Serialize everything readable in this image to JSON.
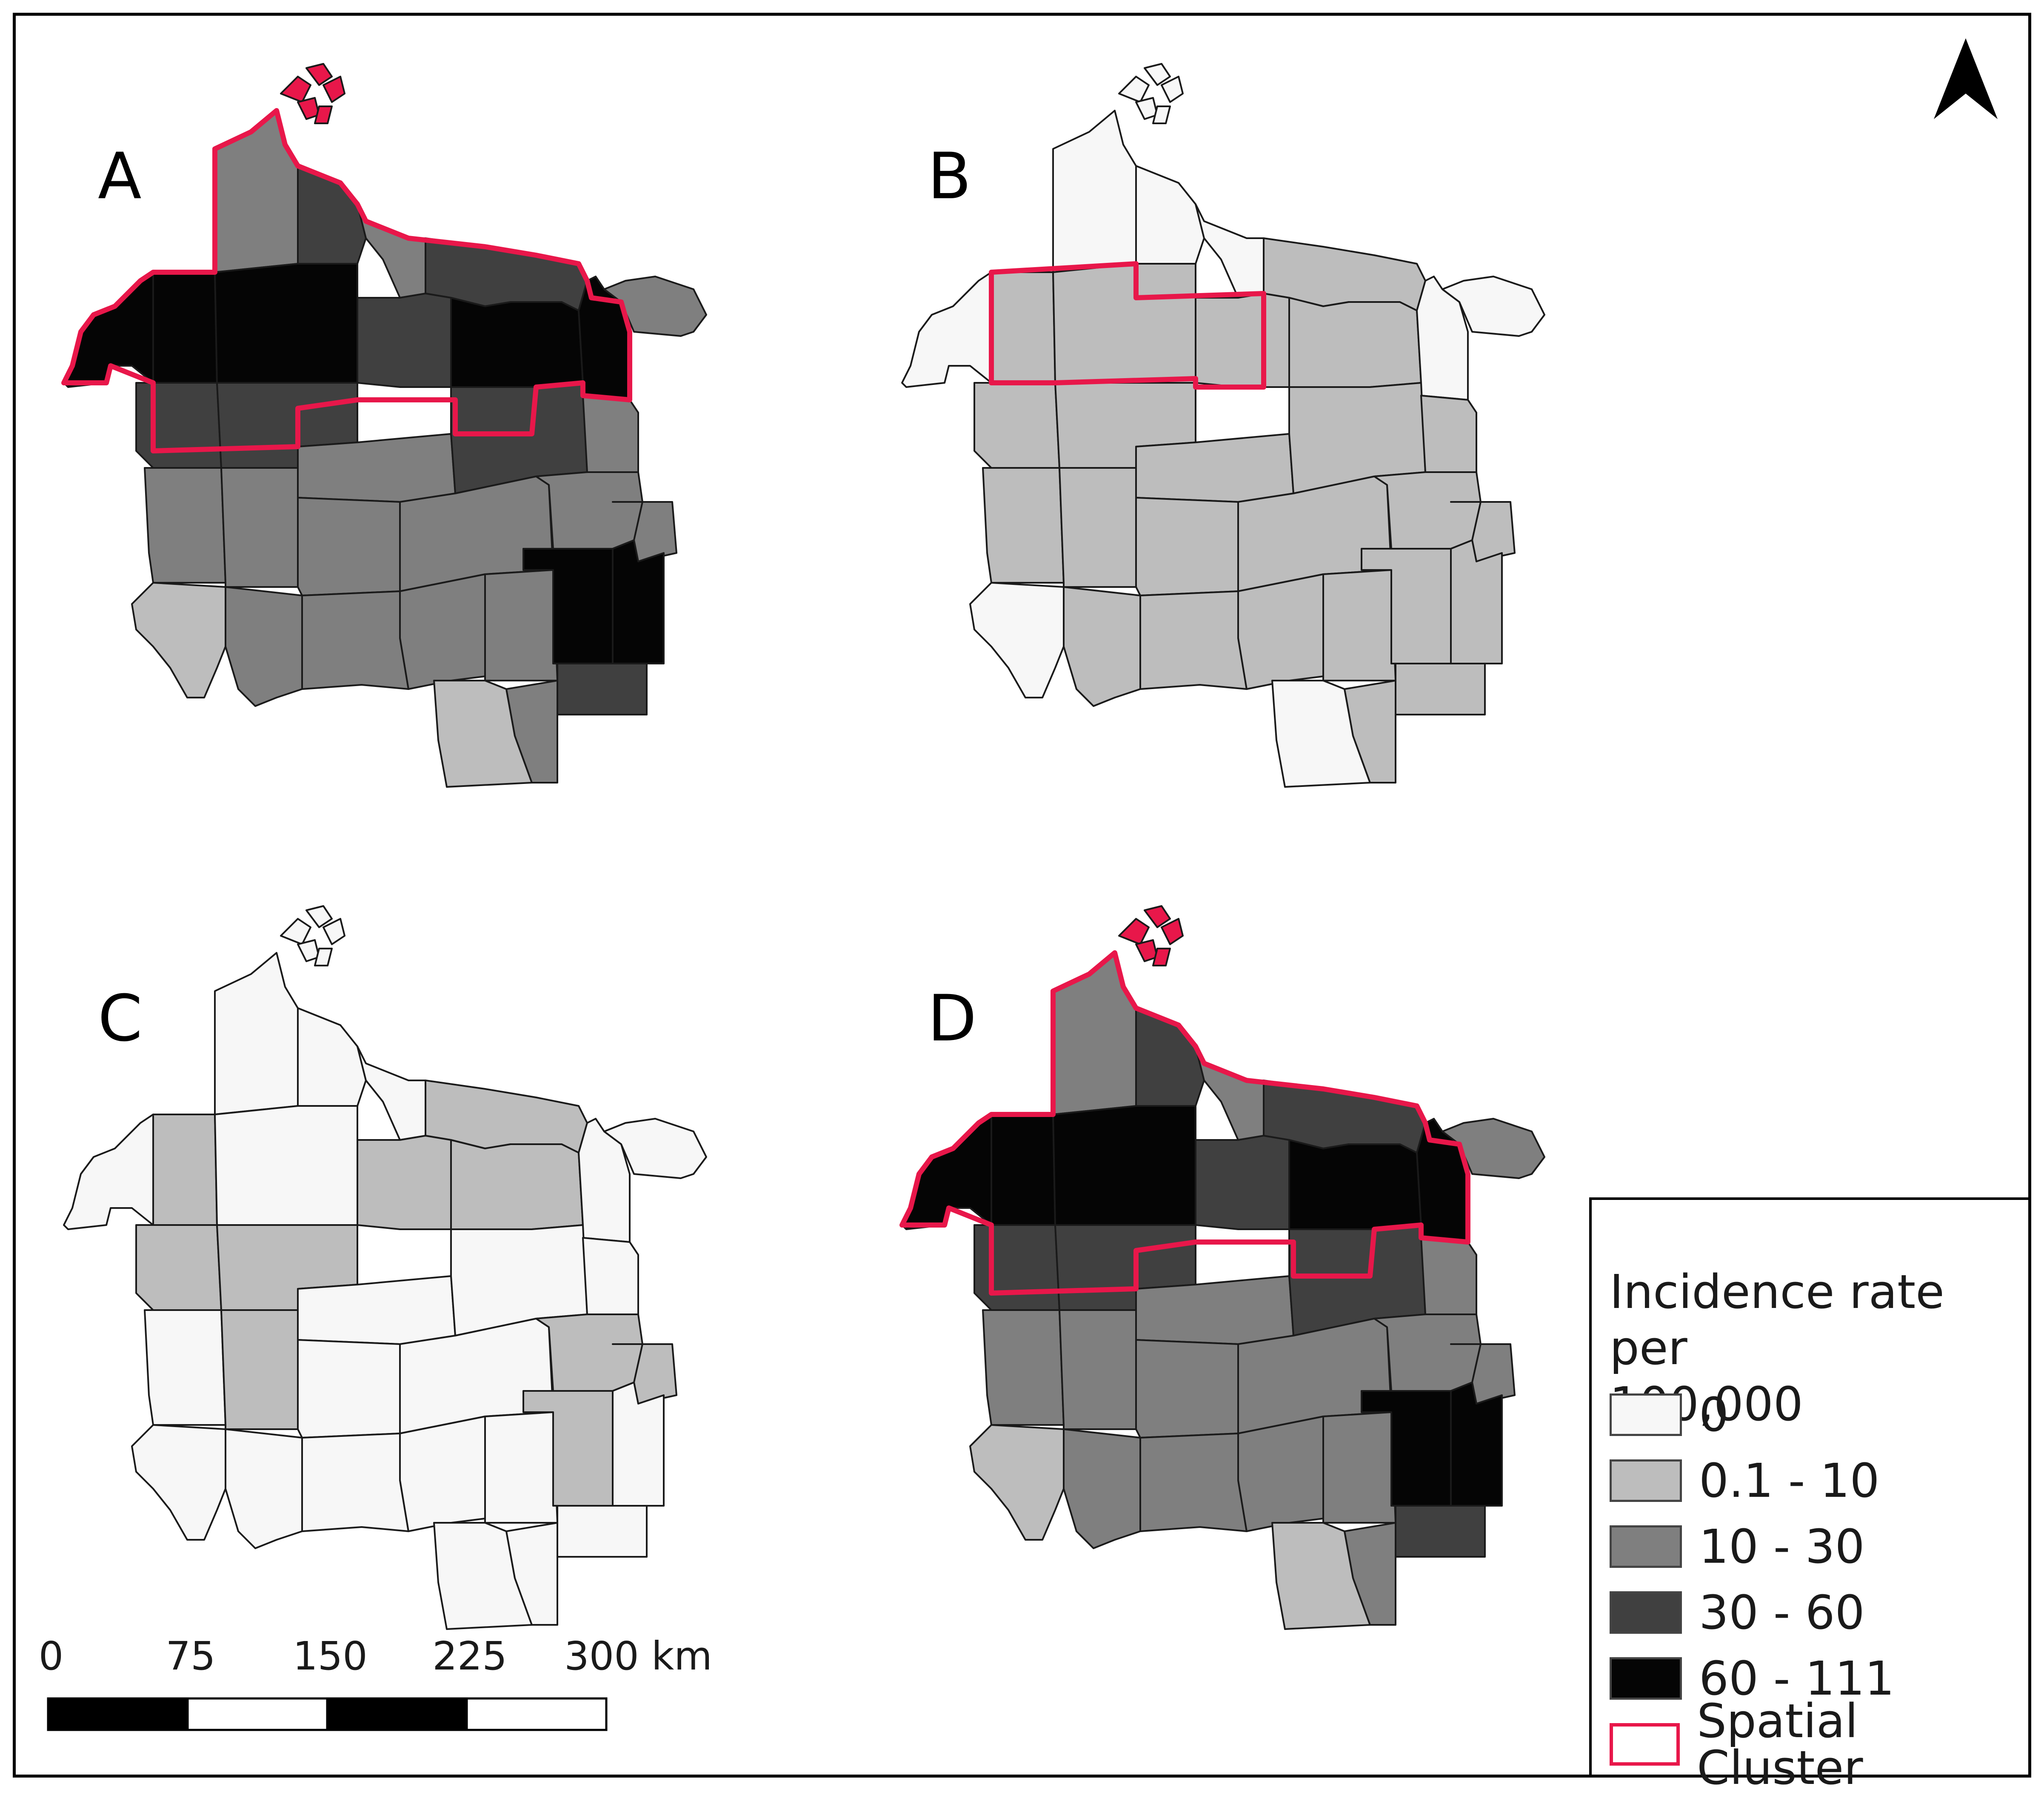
{
  "panels": [
    {
      "letter": "A",
      "classes": {
        "north_west": "10 - 30",
        "north_mid": "30 - 60",
        "north_narrow": "10 - 30",
        "north_east": "30 - 60",
        "far_west": "60 - 111",
        "nw_upper": "60 - 111",
        "nc_upper": "60 - 111",
        "center_upper": "30 - 60",
        "ne_upper": "60 - 111",
        "east_upper": "60 - 111",
        "far_east": "10 - 30",
        "w_mid": "30 - 60",
        "wc_mid": "30 - 60",
        "c_mid": "10 - 30",
        "ec_mid": "30 - 60",
        "e_mid": "10 - 30",
        "w_low": "10 - 30",
        "wc_low": "10 - 30",
        "c_low": "10 - 30",
        "ec_low": "10 - 30",
        "e_low": "10 - 30",
        "far_east_low": "10 - 30",
        "sw_1": "0.1 - 10",
        "sw_2": "10 - 30",
        "sw_3": "10 - 30",
        "sw_4": "10 - 30",
        "s_c1": "10 - 30",
        "se_1": "60 - 111",
        "se_2": "60 - 111",
        "s_south1": "0.1 - 10",
        "s_south2": "10 - 30",
        "s_south3": "30 - 60"
      },
      "cluster": "north"
    },
    {
      "letter": "B",
      "classes": {
        "north_west": "0",
        "north_mid": "0",
        "north_narrow": "0",
        "north_east": "0.1 - 10",
        "far_west": "0",
        "nw_upper": "0.1 - 10",
        "nc_upper": "0.1 - 10",
        "center_upper": "0.1 - 10",
        "ne_upper": "0.1 - 10",
        "east_upper": "0",
        "far_east": "0",
        "w_mid": "0.1 - 10",
        "wc_mid": "0.1 - 10",
        "c_mid": "0.1 - 10",
        "ec_mid": "0.1 - 10",
        "e_mid": "0.1 - 10",
        "w_low": "0.1 - 10",
        "wc_low": "0.1 - 10",
        "c_low": "0.1 - 10",
        "ec_low": "0.1 - 10",
        "e_low": "0.1 - 10",
        "far_east_low": "0.1 - 10",
        "sw_1": "0",
        "sw_2": "0.1 - 10",
        "sw_3": "0.1 - 10",
        "sw_4": "0.1 - 10",
        "s_c1": "0.1 - 10",
        "se_1": "0.1 - 10",
        "se_2": "0.1 - 10",
        "s_south1": "0",
        "s_south2": "0.1 - 10",
        "s_south3": "0.1 - 10"
      },
      "cluster": "central"
    },
    {
      "letter": "C",
      "classes": {
        "north_west": "0",
        "north_mid": "0",
        "north_narrow": "0",
        "north_east": "0.1 - 10",
        "far_west": "0",
        "nw_upper": "0.1 - 10",
        "nc_upper": "0",
        "center_upper": "0.1 - 10",
        "ne_upper": "0.1 - 10",
        "east_upper": "0",
        "far_east": "0",
        "w_mid": "0.1 - 10",
        "wc_mid": "0.1 - 10",
        "c_mid": "0",
        "ec_mid": "0",
        "e_mid": "0",
        "w_low": "0",
        "wc_low": "0.1 - 10",
        "c_low": "0",
        "ec_low": "0",
        "e_low": "0.1 - 10",
        "far_east_low": "0.1 - 10",
        "sw_1": "0",
        "sw_2": "0",
        "sw_3": "0",
        "sw_4": "0",
        "s_c1": "0",
        "se_1": "0.1 - 10",
        "se_2": "0",
        "s_south1": "0",
        "s_south2": "0",
        "s_south3": "0"
      },
      "cluster": "none"
    },
    {
      "letter": "D",
      "classes": {
        "north_west": "10 - 30",
        "north_mid": "30 - 60",
        "north_narrow": "10 - 30",
        "north_east": "30 - 60",
        "far_west": "60 - 111",
        "nw_upper": "60 - 111",
        "nc_upper": "60 - 111",
        "center_upper": "30 - 60",
        "ne_upper": "60 - 111",
        "east_upper": "60 - 111",
        "far_east": "10 - 30",
        "w_mid": "30 - 60",
        "wc_mid": "30 - 60",
        "c_mid": "10 - 30",
        "ec_mid": "30 - 60",
        "e_mid": "10 - 30",
        "w_low": "10 - 30",
        "wc_low": "10 - 30",
        "c_low": "10 - 30",
        "ec_low": "10 - 30",
        "e_low": "10 - 30",
        "far_east_low": "10 - 30",
        "sw_1": "0.1 - 10",
        "sw_2": "10 - 30",
        "sw_3": "10 - 30",
        "sw_4": "10 - 30",
        "s_c1": "10 - 30",
        "se_1": "60 - 111",
        "se_2": "60 - 111",
        "s_south1": "0.1 - 10",
        "s_south2": "10 - 30",
        "s_south3": "30 - 60"
      },
      "cluster": "north"
    }
  ],
  "legend": {
    "title": "Incidence rate per\n 100,000",
    "items": [
      {
        "label": "0",
        "color": "#f7f7f7"
      },
      {
        "label": "0.1 - 10",
        "color": "#bdbdbd"
      },
      {
        "label": "10 - 30",
        "color": "#7f7f7f"
      },
      {
        "label": "30 - 60",
        "color": "#404040"
      },
      {
        "label": "60 - 111",
        "color": "#050505"
      }
    ],
    "cluster_label": "Spatial Cluster",
    "cluster_color": "#e8174a"
  },
  "scale_bar": {
    "ticks": [
      "0",
      "75",
      "150",
      "225",
      "300 km"
    ]
  },
  "north_arrow": "north-arrow-icon"
}
